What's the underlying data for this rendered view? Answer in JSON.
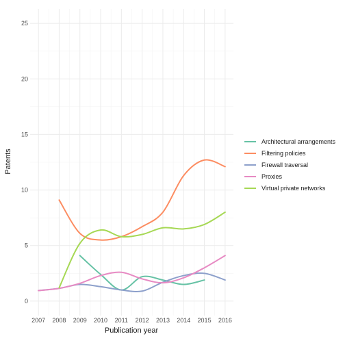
{
  "chart_data": {
    "type": "line",
    "title": "",
    "xlabel": "Publication year",
    "ylabel": "Patents",
    "xlim": [
      2006.6,
      2016.4
    ],
    "ylim": [
      -1.3,
      26.3
    ],
    "x_ticks": [
      2007,
      2008,
      2009,
      2010,
      2011,
      2012,
      2013,
      2014,
      2015,
      2016
    ],
    "y_ticks": [
      0,
      5,
      10,
      15,
      20,
      25
    ],
    "grid": true,
    "legend_position": "right",
    "series": [
      {
        "name": "Architectural arrangements",
        "color": "#66c2a5",
        "x": [
          2009,
          2010,
          2011,
          2012,
          2013,
          2014,
          2015
        ],
        "y": [
          4.1,
          2.4,
          1.0,
          2.2,
          1.9,
          1.5,
          1.9
        ]
      },
      {
        "name": "Filtering policies",
        "color": "#fc8d62",
        "x": [
          2008,
          2009,
          2010,
          2011,
          2012,
          2013,
          2014,
          2015,
          2016
        ],
        "y": [
          9.1,
          6.1,
          5.5,
          5.8,
          6.7,
          8.0,
          11.3,
          12.7,
          12.1
        ]
      },
      {
        "name": "Firewall traversal",
        "color": "#8da0cb",
        "x": [
          2007,
          2008,
          2009,
          2010,
          2011,
          2012,
          2013,
          2014,
          2015,
          2016
        ],
        "y": [
          0.95,
          1.15,
          1.5,
          1.3,
          1.0,
          0.9,
          1.7,
          2.3,
          2.5,
          1.9
        ]
      },
      {
        "name": "Proxies",
        "color": "#e78ac3",
        "x": [
          2007,
          2008,
          2009,
          2010,
          2011,
          2012,
          2013,
          2014,
          2015,
          2016
        ],
        "y": [
          0.95,
          1.15,
          1.6,
          2.3,
          2.6,
          2.0,
          1.65,
          2.1,
          3.0,
          4.1
        ]
      },
      {
        "name": "Virtual private networks",
        "color": "#a6d854",
        "x": [
          2008,
          2009,
          2010,
          2011,
          2012,
          2013,
          2014,
          2015,
          2016
        ],
        "y": [
          1.2,
          5.2,
          6.4,
          5.8,
          6.0,
          6.6,
          6.5,
          6.9,
          8.0
        ]
      }
    ]
  }
}
